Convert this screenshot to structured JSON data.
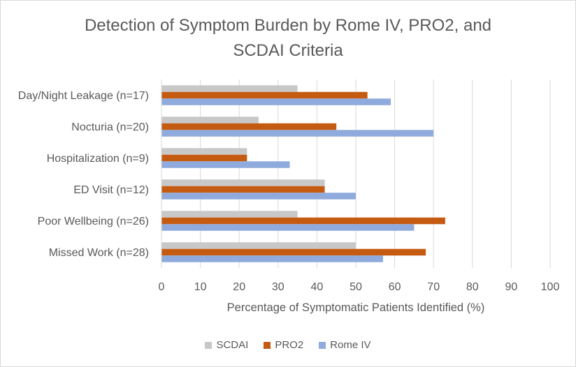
{
  "chart_data": {
    "type": "bar",
    "orientation": "horizontal",
    "title_lines": [
      "Detection of Symptom Burden by Rome IV, PRO2, and",
      "SCDAI Criteria"
    ],
    "xlabel": "Percentage of Symptomatic Patients Identified (%)",
    "ylabel": "",
    "xlim": [
      0,
      100
    ],
    "xticks": [
      0,
      10,
      20,
      30,
      40,
      50,
      60,
      70,
      80,
      90,
      100
    ],
    "grid": "vertical",
    "legend_position": "bottom",
    "categories": [
      "Day/Night Leakage (n=17)",
      "Nocturia (n=20)",
      "Hospitalization (n=9)",
      "ED Visit (n=12)",
      "Poor Wellbeing (n=26)",
      "Missed Work (n=28)"
    ],
    "series": [
      {
        "name": "SCDAI",
        "color": "#c8c8c8",
        "values": [
          35,
          25,
          22,
          42,
          35,
          50
        ]
      },
      {
        "name": "PRO2",
        "color": "#c55a11",
        "values": [
          53,
          45,
          22,
          42,
          73,
          68
        ]
      },
      {
        "name": "Rome IV",
        "color": "#8faadc",
        "values": [
          59,
          70,
          33,
          50,
          65,
          57
        ]
      }
    ]
  }
}
